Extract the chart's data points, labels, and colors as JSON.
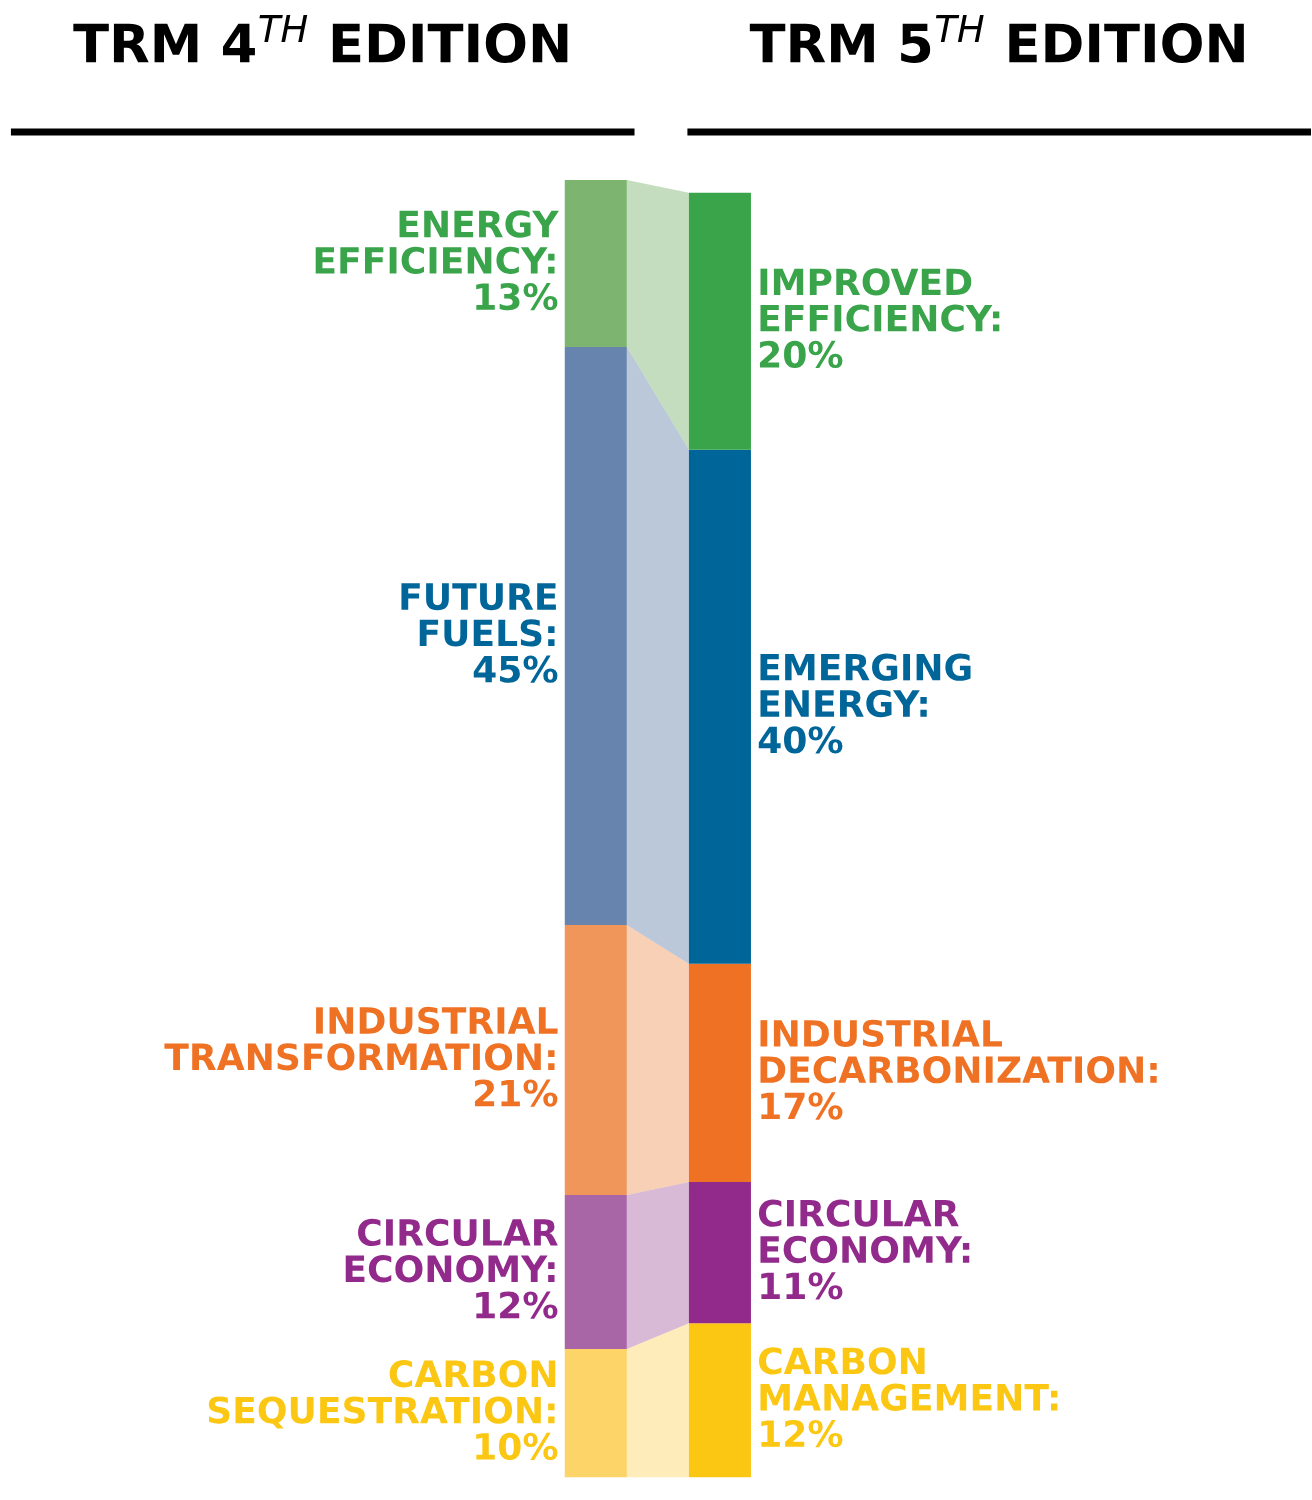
{
  "chart_data": {
    "type": "other",
    "categories": [
      "TRM 4$^{TH}$ EDITION",
      "TRM 5$^{TH}$ EDITION"
    ],
    "series": [
      {
        "values": [
          10,
          12
        ],
        "colors": [
          "#fcd468",
          "#fbc713"
        ],
        "value_labels": [
          "CARBON\nSEQUESTRATION:\n10%",
          "CARBON\nMANAGEMENT:\n12%"
        ]
      },
      {
        "values": [
          12,
          11
        ],
        "colors": [
          "#a866a7",
          "#922a8c"
        ],
        "value_labels": [
          "CIRCULAR\nECONOMY:\n12%",
          "CIRCULAR\nECONOMY:\n11%"
        ]
      },
      {
        "values": [
          21,
          17
        ],
        "colors": [
          "#f0965b",
          "#ef7224"
        ],
        "value_labels": [
          "INDUSTRIAL\nTRANSFORMATION:\n21%",
          "INDUSTRIAL\nDECARBONIZATION:\n17%"
        ]
      },
      {
        "values": [
          45,
          40
        ],
        "colors": [
          "#6784ae",
          "#006699"
        ],
        "value_labels": [
          "FUTURE\nFUELS:\n45%",
          "EMERGING\nENERGY:\n40%"
        ]
      },
      {
        "values": [
          13,
          20
        ],
        "colors": [
          "#7db46f",
          "#39a44a"
        ],
        "value_labels": [
          "ENERGY\nEFFICIENCY:\n13%",
          "IMPROVED\nEFFICIENCY:\n20%"
        ]
      }
    ]
  }
}
